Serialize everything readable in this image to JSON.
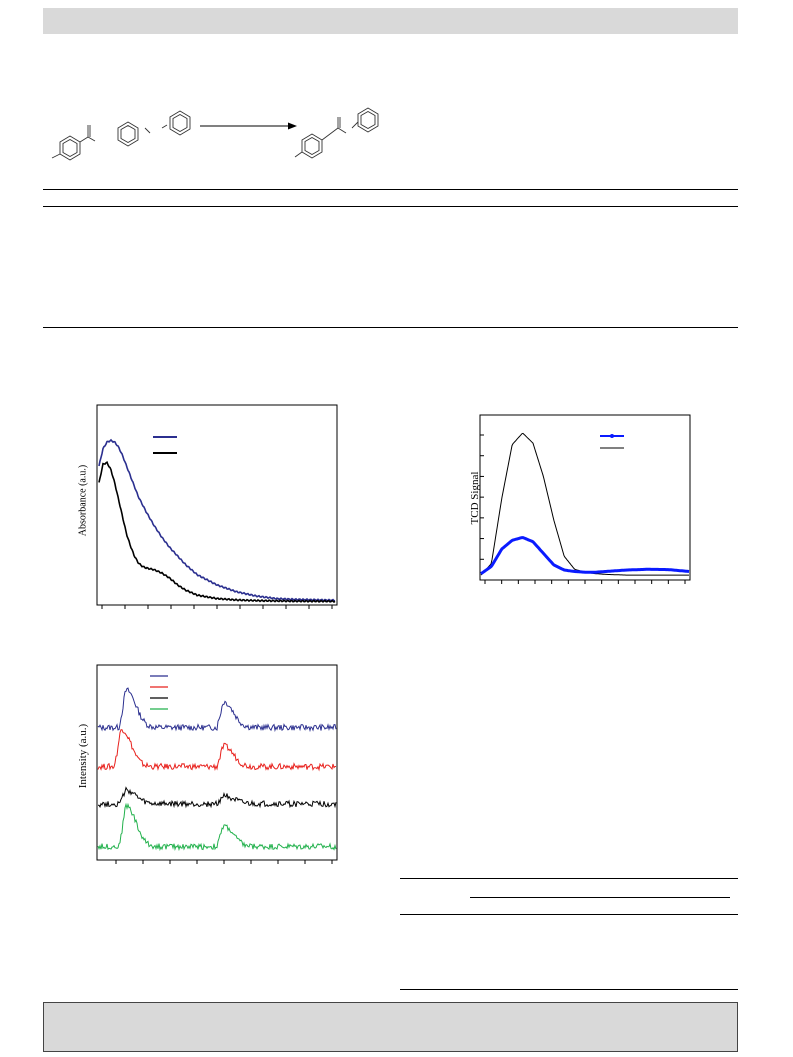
{
  "page": {
    "header": "",
    "footer": ""
  },
  "colors": {
    "header_bar": "#d9d9d9",
    "footer_bar": "#d9d9d9",
    "navy": "#2b2f8f",
    "black": "#000000",
    "red": "#e8201c",
    "green": "#22b14c",
    "blue": "#0a1bff"
  },
  "scheme": {
    "arrow": "reaction-arrow-icon"
  },
  "chart_data": [
    {
      "type": "line",
      "id": "uv-vis",
      "xlabel": "",
      "ylabel": "Absorbance (a.u.)",
      "series": [
        {
          "color": "#2b2f8f",
          "x": [
            200,
            210,
            220,
            230,
            240,
            250,
            260,
            270,
            280,
            290,
            300,
            320,
            340,
            360,
            380,
            400,
            420,
            450,
            500,
            550,
            600,
            650,
            700,
            800
          ],
          "y": [
            0.8,
            0.9,
            0.94,
            0.95,
            0.94,
            0.91,
            0.86,
            0.8,
            0.74,
            0.68,
            0.62,
            0.53,
            0.45,
            0.38,
            0.32,
            0.27,
            0.22,
            0.16,
            0.1,
            0.06,
            0.035,
            0.02,
            0.015,
            0.01
          ]
        },
        {
          "color": "#000000",
          "x": [
            200,
            210,
            220,
            230,
            240,
            250,
            260,
            270,
            280,
            290,
            300,
            310,
            320,
            340,
            360,
            380,
            400,
            420,
            450,
            500,
            550,
            600,
            700,
            800
          ],
          "y": [
            0.7,
            0.81,
            0.82,
            0.78,
            0.7,
            0.6,
            0.5,
            0.4,
            0.33,
            0.27,
            0.23,
            0.21,
            0.2,
            0.19,
            0.17,
            0.14,
            0.1,
            0.07,
            0.04,
            0.02,
            0.012,
            0.008,
            0.005,
            0.004
          ]
        }
      ],
      "legend": [
        "",
        ""
      ]
    },
    {
      "type": "line",
      "id": "tpd",
      "xlabel": "",
      "ylabel": "TCD Signal",
      "series": [
        {
          "color": "#000000",
          "x": [
            0,
            5,
            10,
            15,
            20,
            25,
            30,
            35,
            40,
            45,
            50,
            55,
            60,
            70,
            80,
            90,
            100
          ],
          "y": [
            0.02,
            0.1,
            0.55,
            0.92,
            1.0,
            0.93,
            0.7,
            0.4,
            0.15,
            0.06,
            0.04,
            0.03,
            0.025,
            0.02,
            0.02,
            0.02,
            0.02
          ]
        },
        {
          "color": "#0a1bff",
          "x": [
            0,
            5,
            10,
            15,
            20,
            25,
            30,
            35,
            40,
            45,
            50,
            55,
            60,
            70,
            80,
            90,
            100
          ],
          "y": [
            0.03,
            0.08,
            0.2,
            0.26,
            0.28,
            0.25,
            0.17,
            0.09,
            0.055,
            0.045,
            0.04,
            0.04,
            0.045,
            0.055,
            0.06,
            0.058,
            0.045
          ]
        }
      ],
      "legend": [
        "",
        ""
      ]
    },
    {
      "type": "line",
      "id": "xrd",
      "xlabel": "",
      "ylabel": "Intensity (a.u.)",
      "series": [
        {
          "color": "#2b2f8f",
          "offset": 0.75,
          "peaks": [
            [
              12,
              0.22
            ],
            [
              53,
              0.15
            ]
          ]
        },
        {
          "color": "#e8201c",
          "offset": 0.52,
          "peaks": [
            [
              10,
              0.22
            ],
            [
              53,
              0.12
            ]
          ]
        },
        {
          "color": "#000000",
          "offset": 0.3,
          "peaks": [
            [
              12,
              0.08
            ],
            [
              53,
              0.05
            ]
          ]
        },
        {
          "color": "#22b14c",
          "offset": 0.05,
          "peaks": [
            [
              12,
              0.24
            ],
            [
              53,
              0.12
            ]
          ]
        }
      ],
      "legend": [
        "",
        "",
        "",
        ""
      ]
    }
  ]
}
